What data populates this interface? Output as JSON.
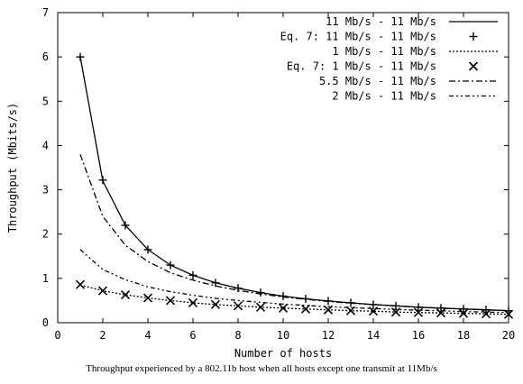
{
  "caption": "Throughput experienced by a 802.11b host when all hosts except  one transmit at 11Mb/s",
  "chart_data": {
    "type": "line",
    "title": "",
    "xlabel": "Number of hosts",
    "ylabel": "Throughput (Mbits/s)",
    "xlim": [
      0,
      20
    ],
    "ylim": [
      0,
      7
    ],
    "xticks": [
      0,
      2,
      4,
      6,
      8,
      10,
      12,
      14,
      16,
      18,
      20
    ],
    "yticks": [
      0,
      1,
      2,
      3,
      4,
      5,
      6,
      7
    ],
    "grid": false,
    "legend": "top-right",
    "series": [
      {
        "name": "11 Mb/s - 11 Mb/s",
        "style": "solid",
        "x": [
          1,
          2,
          3,
          4,
          5,
          6,
          7,
          8,
          9,
          10,
          11,
          12,
          13,
          14,
          15,
          16,
          17,
          18,
          19,
          20
        ],
        "y": [
          6.0,
          3.2,
          2.2,
          1.65,
          1.3,
          1.07,
          0.9,
          0.78,
          0.68,
          0.6,
          0.54,
          0.49,
          0.45,
          0.41,
          0.38,
          0.35,
          0.33,
          0.31,
          0.29,
          0.27
        ]
      },
      {
        "name": "Eq. 7: 11 Mb/s - 11 Mb/s",
        "style": "plus",
        "x": [
          1,
          2,
          3,
          4,
          5,
          6,
          7,
          8,
          9,
          10,
          11,
          12,
          13,
          14,
          15,
          16,
          17,
          18,
          19,
          20
        ],
        "y": [
          6.0,
          3.22,
          2.2,
          1.65,
          1.3,
          1.07,
          0.9,
          0.78,
          0.68,
          0.6,
          0.54,
          0.49,
          0.45,
          0.41,
          0.38,
          0.35,
          0.33,
          0.31,
          0.29,
          0.27
        ]
      },
      {
        "name": "1 Mb/s - 11 Mb/s",
        "style": "dotted",
        "x": [
          1,
          2,
          3,
          4,
          5,
          6,
          7,
          8,
          9,
          10,
          11,
          12,
          13,
          14,
          15,
          16,
          17,
          18,
          19,
          20
        ],
        "y": [
          0.85,
          0.72,
          0.63,
          0.56,
          0.5,
          0.45,
          0.41,
          0.38,
          0.35,
          0.33,
          0.31,
          0.29,
          0.27,
          0.26,
          0.24,
          0.23,
          0.22,
          0.21,
          0.2,
          0.19
        ]
      },
      {
        "name": "Eq. 7: 1 Mb/s - 11 Mb/s",
        "style": "cross",
        "x": [
          1,
          2,
          3,
          4,
          5,
          6,
          7,
          8,
          9,
          10,
          11,
          12,
          13,
          14,
          15,
          16,
          17,
          18,
          19,
          20
        ],
        "y": [
          0.86,
          0.72,
          0.63,
          0.56,
          0.5,
          0.45,
          0.41,
          0.38,
          0.35,
          0.33,
          0.31,
          0.29,
          0.27,
          0.26,
          0.24,
          0.23,
          0.22,
          0.21,
          0.2,
          0.19
        ]
      },
      {
        "name": "5.5 Mb/s - 11 Mb/s",
        "style": "dashdot",
        "x": [
          1,
          2,
          3,
          4,
          5,
          6,
          7,
          8,
          9,
          10,
          11,
          12,
          13,
          14,
          15,
          16,
          17,
          18,
          19,
          20
        ],
        "y": [
          3.8,
          2.4,
          1.75,
          1.38,
          1.13,
          0.96,
          0.83,
          0.73,
          0.65,
          0.58,
          0.53,
          0.48,
          0.44,
          0.41,
          0.38,
          0.35,
          0.33,
          0.31,
          0.29,
          0.27
        ]
      },
      {
        "name": "2 Mb/s - 11 Mb/s",
        "style": "dashdotdot",
        "x": [
          1,
          2,
          3,
          4,
          5,
          6,
          7,
          8,
          9,
          10,
          11,
          12,
          13,
          14,
          15,
          16,
          17,
          18,
          19,
          20
        ],
        "y": [
          1.65,
          1.2,
          0.97,
          0.81,
          0.7,
          0.62,
          0.55,
          0.5,
          0.46,
          0.42,
          0.39,
          0.36,
          0.34,
          0.32,
          0.3,
          0.28,
          0.27,
          0.25,
          0.24,
          0.23
        ]
      }
    ]
  }
}
